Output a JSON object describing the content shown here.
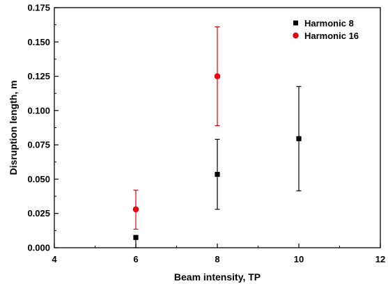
{
  "chart_data": {
    "type": "scatter",
    "xlabel": "Beam intensity, TP",
    "ylabel": "Disruption length, m",
    "xlim": [
      4,
      12
    ],
    "ylim": [
      0,
      0.175
    ],
    "x_ticks": [
      "4",
      "6",
      "8",
      "10",
      "12"
    ],
    "y_ticks": [
      "0.000",
      "0.025",
      "0.050",
      "0.075",
      "0.100",
      "0.125",
      "0.150",
      "0.175"
    ],
    "legend_position": "top-right",
    "grid": false,
    "series": [
      {
        "name": "Harmonic 8",
        "marker": "square",
        "color": "#000000",
        "points": [
          {
            "x": 6,
            "y": 0.0075,
            "err_low": 0.0,
            "err_high": 0.0075
          },
          {
            "x": 8,
            "y": 0.0535,
            "err_low": 0.028,
            "err_high": 0.079
          },
          {
            "x": 10,
            "y": 0.0795,
            "err_low": 0.0415,
            "err_high": 0.1175
          }
        ]
      },
      {
        "name": "Harmonic 16",
        "marker": "circle",
        "color": "#e8000b",
        "points": [
          {
            "x": 6,
            "y": 0.028,
            "err_low": 0.0135,
            "err_high": 0.042
          },
          {
            "x": 8,
            "y": 0.125,
            "err_low": 0.089,
            "err_high": 0.161
          }
        ]
      }
    ]
  }
}
